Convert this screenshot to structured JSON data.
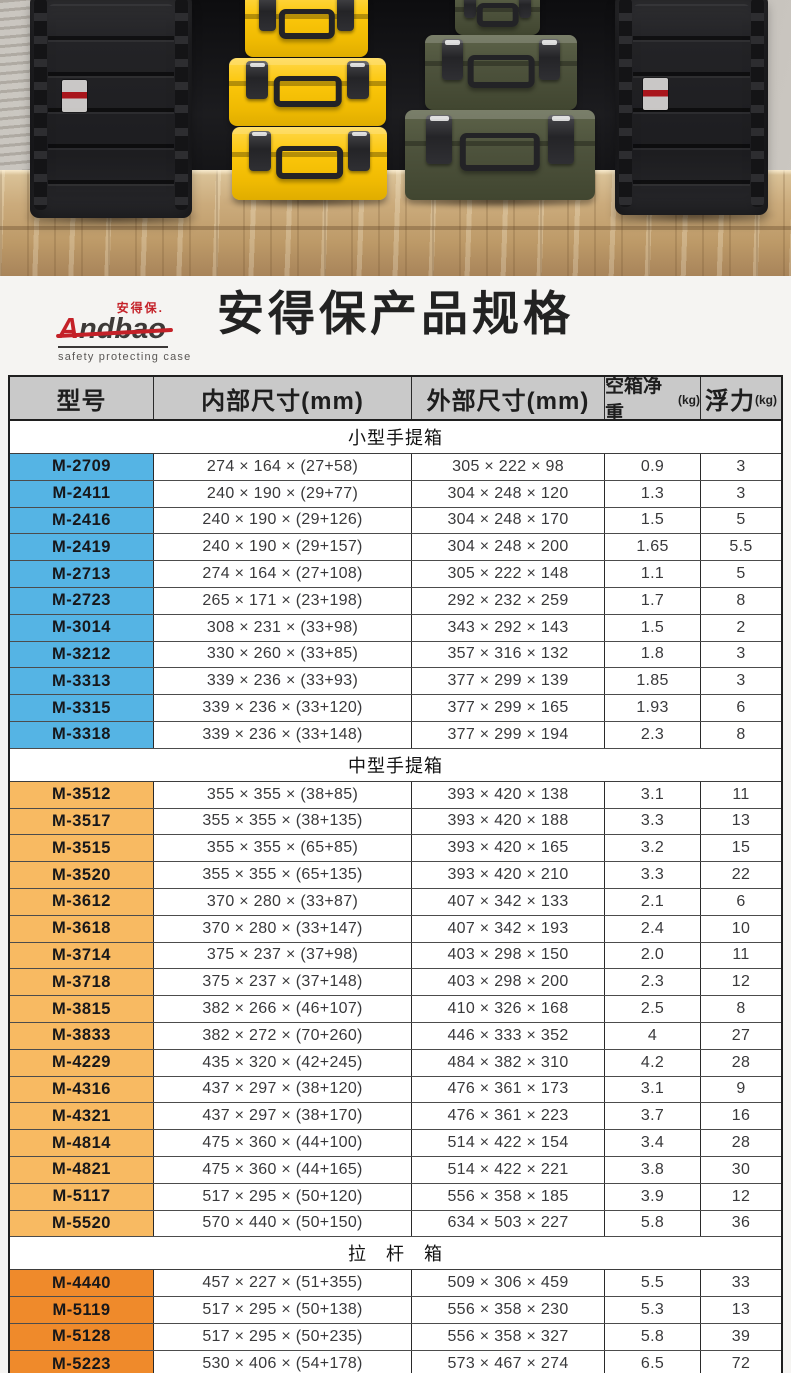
{
  "hero": {
    "scene": "protective cases on wooden table",
    "case_colors": {
      "black": "#222225",
      "yellow": "#fbc60a",
      "olive": "#4d523c"
    },
    "label_red": "#b5161c"
  },
  "logo": {
    "cn": "安得保.",
    "en_first": "A",
    "en_rest": "ndbao",
    "tagline": "safety protecting case",
    "brand_red": "#c42128"
  },
  "title": {
    "heavy": "安得保",
    "rest": "产品规格"
  },
  "table": {
    "header_bg": "#c9c9c9",
    "columns": [
      {
        "label": "型号",
        "unit": ""
      },
      {
        "label": "内部尺寸(mm)",
        "unit": ""
      },
      {
        "label": "外部尺寸(mm)",
        "unit": ""
      },
      {
        "label": "空箱净重",
        "unit": "(kg)"
      },
      {
        "label": "浮力",
        "unit": "(kg)"
      }
    ],
    "sections": [
      {
        "name": "小型手提箱",
        "model_bg": "#55b4e4",
        "rows": [
          [
            "M-2709",
            "274 × 164 × (27+58)",
            "305 × 222 × 98",
            "0.9",
            "3"
          ],
          [
            "M-2411",
            "240 × 190 × (29+77)",
            "304 × 248 × 120",
            "1.3",
            "3"
          ],
          [
            "M-2416",
            "240 × 190 × (29+126)",
            "304 × 248 × 170",
            "1.5",
            "5"
          ],
          [
            "M-2419",
            "240 × 190 × (29+157)",
            "304 × 248 × 200",
            "1.65",
            "5.5"
          ],
          [
            "M-2713",
            "274 × 164 × (27+108)",
            "305 × 222 × 148",
            "1.1",
            "5"
          ],
          [
            "M-2723",
            "265 × 171 × (23+198)",
            "292 × 232 × 259",
            "1.7",
            "8"
          ],
          [
            "M-3014",
            "308 × 231 × (33+98)",
            "343 × 292 × 143",
            "1.5",
            "2"
          ],
          [
            "M-3212",
            "330 × 260 × (33+85)",
            "357 × 316 × 132",
            "1.8",
            "3"
          ],
          [
            "M-3313",
            "339 × 236 × (33+93)",
            "377 × 299 × 139",
            "1.85",
            "3"
          ],
          [
            "M-3315",
            "339 × 236 × (33+120)",
            "377 × 299 × 165",
            "1.93",
            "6"
          ],
          [
            "M-3318",
            "339 × 236 × (33+148)",
            "377 × 299 × 194",
            "2.3",
            "8"
          ]
        ]
      },
      {
        "name": "中型手提箱",
        "model_bg": "#f8ba62",
        "rows": [
          [
            "M-3512",
            "355 × 355 × (38+85)",
            "393 × 420 × 138",
            "3.1",
            "11"
          ],
          [
            "M-3517",
            "355 × 355 × (38+135)",
            "393 × 420 × 188",
            "3.3",
            "13"
          ],
          [
            "M-3515",
            "355 × 355 × (65+85)",
            "393 × 420 × 165",
            "3.2",
            "15"
          ],
          [
            "M-3520",
            "355 × 355 × (65+135)",
            "393 × 420 × 210",
            "3.3",
            "22"
          ],
          [
            "M-3612",
            "370 × 280 × (33+87)",
            "407 × 342 × 133",
            "2.1",
            "6"
          ],
          [
            "M-3618",
            "370 × 280 × (33+147)",
            "407 × 342 × 193",
            "2.4",
            "10"
          ],
          [
            "M-3714",
            "375 × 237 × (37+98)",
            "403 × 298 × 150",
            "2.0",
            "11"
          ],
          [
            "M-3718",
            "375 × 237 × (37+148)",
            "403 × 298 × 200",
            "2.3",
            "12"
          ],
          [
            "M-3815",
            "382 × 266 × (46+107)",
            "410 × 326 × 168",
            "2.5",
            "8"
          ],
          [
            "M-3833",
            "382 × 272 × (70+260)",
            "446 × 333 × 352",
            "4",
            "27"
          ],
          [
            "M-4229",
            "435 × 320 × (42+245)",
            "484 × 382 × 310",
            "4.2",
            "28"
          ],
          [
            "M-4316",
            "437 × 297 × (38+120)",
            "476 × 361 × 173",
            "3.1",
            "9"
          ],
          [
            "M-4321",
            "437 × 297 × (38+170)",
            "476 × 361 × 223",
            "3.7",
            "16"
          ],
          [
            "M-4814",
            "475 × 360 × (44+100)",
            "514 × 422 × 154",
            "3.4",
            "28"
          ],
          [
            "M-4821",
            "475 × 360 × (44+165)",
            "514 × 422 × 221",
            "3.8",
            "30"
          ],
          [
            "M-5117",
            "517 × 295 × (50+120)",
            "556 × 358 × 185",
            "3.9",
            "12"
          ],
          [
            "M-5520",
            "570 × 440 × (50+150)",
            "634 × 503 × 227",
            "5.8",
            "36"
          ]
        ]
      },
      {
        "name": "拉　杆　箱",
        "model_bg": "#ef8a2b",
        "rows": [
          [
            "M-4440",
            "457 × 227 × (51+355)",
            "509 × 306 × 459",
            "5.5",
            "33"
          ],
          [
            "M-5119",
            "517 × 295 × (50+138)",
            "556 × 358 × 230",
            "5.3",
            "13"
          ],
          [
            "M-5128",
            "517 × 295 × (50+235)",
            "556 × 358 × 327",
            "5.8",
            "39"
          ],
          [
            "M-5223",
            "530 × 406 × (54+178)",
            "573 × 467 × 274",
            "6.5",
            "72"
          ]
        ]
      }
    ]
  }
}
